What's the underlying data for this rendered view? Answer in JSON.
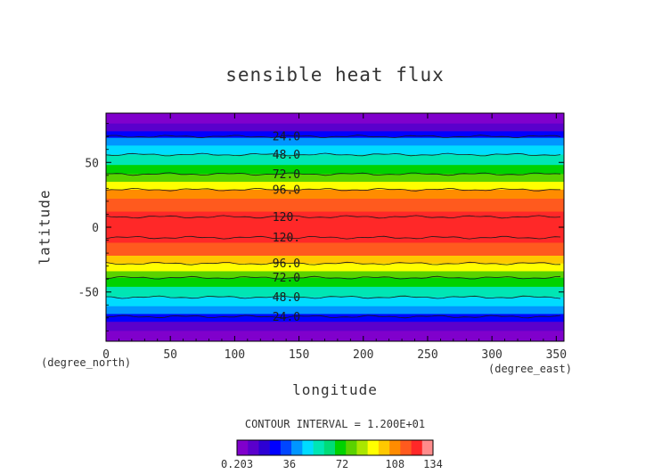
{
  "chart_data": {
    "type": "heatmap",
    "title": "sensible heat flux",
    "xlabel": "longitude",
    "ylabel": "latitude",
    "x_unit": "(degree_east)",
    "y_unit": "(degree_north)",
    "xlim": [
      0,
      356
    ],
    "ylim": [
      -88,
      88
    ],
    "x_ticks": [
      0,
      50,
      100,
      150,
      200,
      250,
      300,
      350
    ],
    "y_ticks": [
      -50,
      0,
      50
    ],
    "contour_interval_text": "CONTOUR INTERVAL = 1.200E+01",
    "contour_interval": 12,
    "contour_labels": [
      {
        "text": "24.0",
        "lat": 70
      },
      {
        "text": "48.0",
        "lat": 56
      },
      {
        "text": "72.0",
        "lat": 41
      },
      {
        "text": "96.0",
        "lat": 29
      },
      {
        "text": "120.",
        "lat": 8
      },
      {
        "text": "120.",
        "lat": -8
      },
      {
        "text": "96.0",
        "lat": -28
      },
      {
        "text": "72.0",
        "lat": -39
      },
      {
        "text": "48.0",
        "lat": -54
      },
      {
        "text": "24.0",
        "lat": -69
      }
    ],
    "latitude_profile": [
      {
        "lat": 88,
        "value": 2
      },
      {
        "lat": 80,
        "value": 10
      },
      {
        "lat": 74,
        "value": 20
      },
      {
        "lat": 69,
        "value": 32
      },
      {
        "lat": 63,
        "value": 44
      },
      {
        "lat": 56,
        "value": 54
      },
      {
        "lat": 48,
        "value": 65
      },
      {
        "lat": 41,
        "value": 76
      },
      {
        "lat": 35,
        "value": 86
      },
      {
        "lat": 29,
        "value": 99
      },
      {
        "lat": 22,
        "value": 112
      },
      {
        "lat": 12,
        "value": 118
      },
      {
        "lat": 6,
        "value": 124
      },
      {
        "lat": 0,
        "value": 128
      },
      {
        "lat": -6,
        "value": 124
      },
      {
        "lat": -12,
        "value": 118
      },
      {
        "lat": -22,
        "value": 110
      },
      {
        "lat": -28,
        "value": 97
      },
      {
        "lat": -34,
        "value": 86
      },
      {
        "lat": -39,
        "value": 76
      },
      {
        "lat": -46,
        "value": 65
      },
      {
        "lat": -54,
        "value": 54
      },
      {
        "lat": -61,
        "value": 44
      },
      {
        "lat": -67,
        "value": 32
      },
      {
        "lat": -73,
        "value": 20
      },
      {
        "lat": -80,
        "value": 10
      },
      {
        "lat": -88,
        "value": 2
      }
    ],
    "colorbar": {
      "min": 0.203,
      "max": 134,
      "tick_values": [
        0.203,
        36,
        72,
        108,
        134
      ],
      "tick_labels": [
        "0.203",
        "36",
        "72",
        "108",
        "134"
      ],
      "colors": [
        "#8000cc",
        "#5a00cc",
        "#2d00d4",
        "#0000ff",
        "#0046ff",
        "#0096ff",
        "#00dcff",
        "#00e6b4",
        "#00dc78",
        "#00d200",
        "#5ad200",
        "#aae600",
        "#ffff00",
        "#ffc800",
        "#ff8c00",
        "#ff5a1e",
        "#ff2828",
        "#ff8c8c"
      ]
    },
    "grid": false
  }
}
